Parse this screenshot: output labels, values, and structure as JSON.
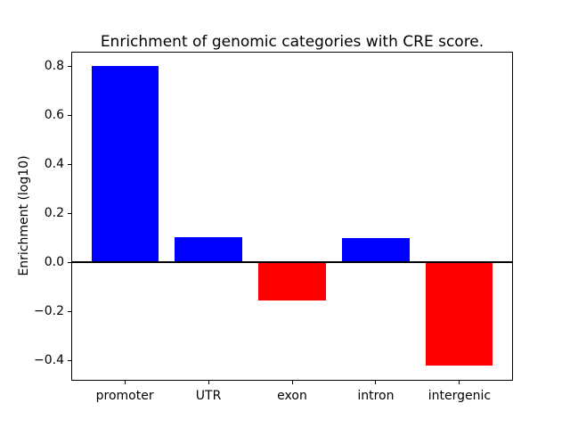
{
  "chart_data": {
    "type": "bar",
    "title": "Enrichment of genomic categories with CRE score.",
    "xlabel": "",
    "ylabel": "Enrichment (log10)",
    "categories": [
      "promoter",
      "UTR",
      "exon",
      "intron",
      "intergenic"
    ],
    "values": [
      0.8,
      0.105,
      -0.155,
      0.1,
      -0.42
    ],
    "yticks": [
      -0.4,
      -0.2,
      0.0,
      0.2,
      0.4,
      0.6,
      0.8
    ],
    "ylim": [
      -0.482,
      0.86
    ],
    "xlim": [
      -0.64,
      4.64
    ],
    "bar_width_data_units": 0.8,
    "positive_color": "#0000ff",
    "negative_color": "#ff0000",
    "zero_line_color": "#000000",
    "frame_color": "#000000",
    "background_color": "#ffffff",
    "grid": false,
    "legend": "none"
  }
}
